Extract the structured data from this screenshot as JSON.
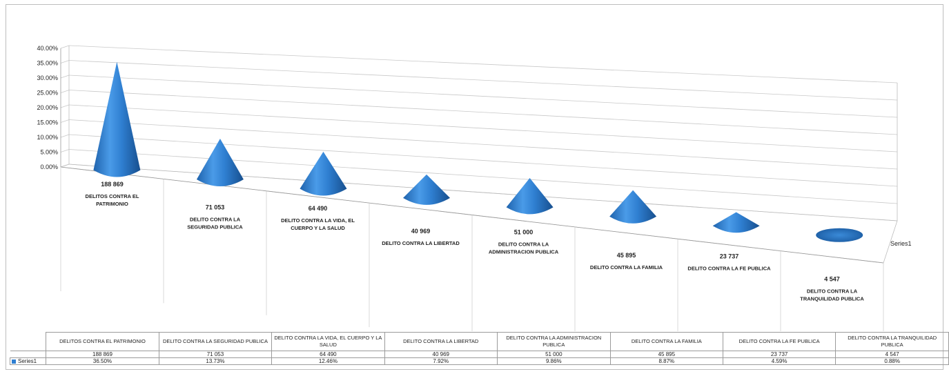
{
  "chart_data": {
    "type": "bar",
    "style": "3d-cone",
    "categories": [
      "DELITOS CONTRA EL PATRIMONIO",
      "DELITO CONTRA LA SEGURIDAD PUBLICA",
      "DELITO CONTRA LA VIDA, EL CUERPO Y LA SALUD",
      "DELITO CONTRA LA LIBERTAD",
      "DELITO CONTRA LA ADMINISTRACION PUBLICA",
      "DELITO CONTRA LA FAMILIA",
      "DELITO CONTRA LA FE PUBLICA",
      "DELITO CONTRA LA TRANQUILIDAD PUBLICA"
    ],
    "counts": [
      "188 869",
      "71 053",
      "64 490",
      "40 969",
      "51 000",
      "45 895",
      "23 737",
      "4 547"
    ],
    "series": [
      {
        "name": "Series1",
        "values": [
          36.5,
          13.73,
          12.46,
          7.92,
          9.86,
          8.87,
          4.59,
          0.88
        ],
        "labels": [
          "36.50%",
          "13.73%",
          "12.46%",
          "7.92%",
          "9.86%",
          "8.87%",
          "4.59%",
          "0.88%"
        ]
      }
    ],
    "yticks": [
      "0.00%",
      "5.00%",
      "10.00%",
      "15.00%",
      "20.00%",
      "25.00%",
      "30.00%",
      "35.00%",
      "40.00%"
    ],
    "ylim": [
      0,
      40
    ],
    "grid": true,
    "color": "#2f7fd1",
    "data_table": true
  }
}
